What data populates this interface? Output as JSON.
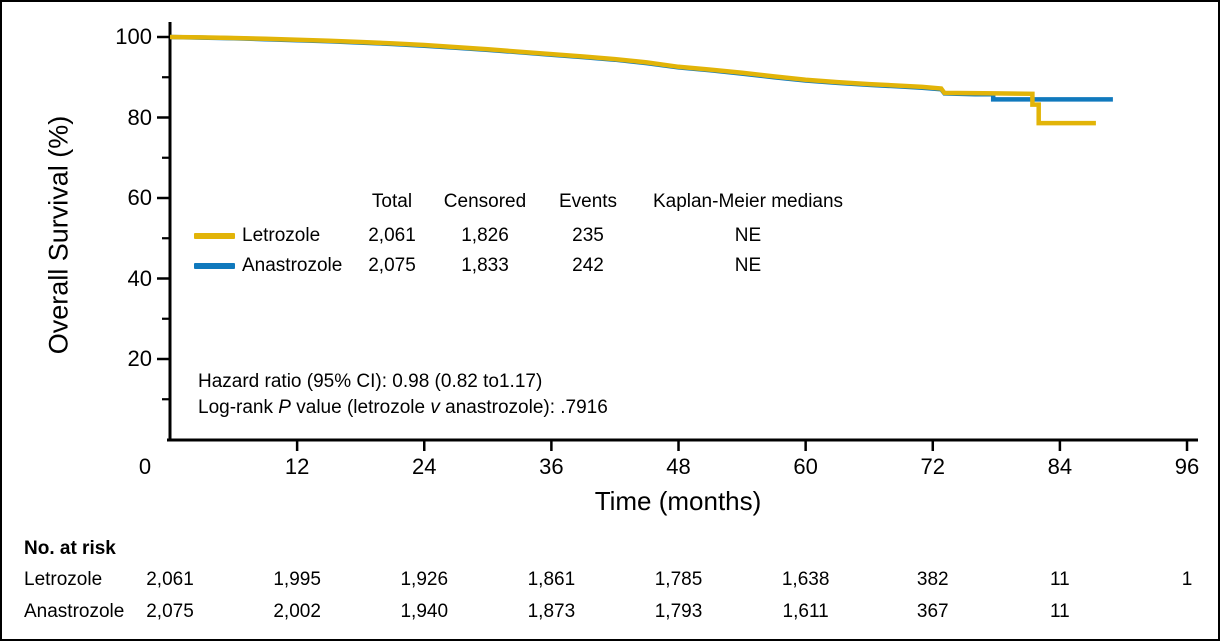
{
  "figure": {
    "background": "#ffffff",
    "border_color": "#000000",
    "text_color": "#000000"
  },
  "chart_data": {
    "type": "line",
    "subtype": "kaplan-meier-survival",
    "title": "",
    "xlabel": "Time (months)",
    "ylabel": "Overall Survival (%)",
    "xlim": [
      0,
      96
    ],
    "ylim": [
      0,
      103
    ],
    "grid": false,
    "x_ticks": [
      0,
      12,
      24,
      36,
      48,
      60,
      72,
      84,
      96
    ],
    "x_tick_labels": [
      "0",
      "12",
      "24",
      "36",
      "48",
      "60",
      "72",
      "84",
      "96"
    ],
    "y_ticks_major": [
      100,
      80,
      60,
      40,
      20
    ],
    "y_tick_labels": [
      "100",
      "80",
      "60",
      "40",
      "20"
    ],
    "y_ticks_minor": [
      90,
      70,
      50,
      30,
      10
    ],
    "legend_position": "inside-center-left",
    "series": [
      {
        "name": "Anastrozole",
        "color": "#1079BD",
        "points": [
          [
            0,
            100
          ],
          [
            3,
            99.85
          ],
          [
            6,
            99.7
          ],
          [
            9,
            99.45
          ],
          [
            12,
            99.2
          ],
          [
            15,
            98.95
          ],
          [
            18,
            98.6
          ],
          [
            21,
            98.25
          ],
          [
            24,
            97.85
          ],
          [
            27,
            97.35
          ],
          [
            30,
            96.8
          ],
          [
            33,
            96.2
          ],
          [
            36,
            95.6
          ],
          [
            39,
            95.0
          ],
          [
            42,
            94.35
          ],
          [
            45,
            93.5
          ],
          [
            48,
            92.45
          ],
          [
            51,
            91.75
          ],
          [
            54,
            90.9
          ],
          [
            57,
            90.0
          ],
          [
            60,
            89.2
          ],
          [
            63,
            88.6
          ],
          [
            66,
            88.1
          ],
          [
            69,
            87.7
          ],
          [
            71,
            87.4
          ],
          [
            72.8,
            87.0
          ],
          [
            73.1,
            86.0
          ],
          [
            76,
            85.8
          ],
          [
            77.7,
            85.8
          ],
          [
            77.7,
            84.5
          ],
          [
            89,
            84.5
          ]
        ]
      },
      {
        "name": "Letrozole",
        "color": "#E2B408",
        "points": [
          [
            0,
            100
          ],
          [
            3,
            99.9
          ],
          [
            6,
            99.75
          ],
          [
            9,
            99.55
          ],
          [
            12,
            99.3
          ],
          [
            15,
            99.05
          ],
          [
            18,
            98.75
          ],
          [
            21,
            98.4
          ],
          [
            24,
            98.0
          ],
          [
            27,
            97.5
          ],
          [
            30,
            96.95
          ],
          [
            33,
            96.35
          ],
          [
            36,
            95.75
          ],
          [
            39,
            95.15
          ],
          [
            42,
            94.5
          ],
          [
            45,
            93.7
          ],
          [
            48,
            92.6
          ],
          [
            51,
            91.9
          ],
          [
            54,
            91.1
          ],
          [
            57,
            90.2
          ],
          [
            60,
            89.4
          ],
          [
            63,
            88.8
          ],
          [
            66,
            88.3
          ],
          [
            69,
            87.9
          ],
          [
            71,
            87.6
          ],
          [
            72.8,
            87.2
          ],
          [
            73.1,
            86.1
          ],
          [
            78,
            86.0
          ],
          [
            81.4,
            85.9
          ],
          [
            81.4,
            83.2
          ],
          [
            82.0,
            83.2
          ],
          [
            82.0,
            78.6
          ],
          [
            87.4,
            78.6
          ]
        ]
      }
    ]
  },
  "legend_table": {
    "headers": [
      "Total",
      "Censored",
      "Events",
      "Kaplan-Meier medians"
    ],
    "rows": [
      {
        "name": "Letrozole",
        "color": "#E2B408",
        "values": [
          "2,061",
          "1,826",
          "235",
          "NE"
        ]
      },
      {
        "name": "Anastrozole",
        "color": "#1079BD",
        "values": [
          "2,075",
          "1,833",
          "242",
          "NE"
        ]
      }
    ]
  },
  "annotations": {
    "hazard_ratio_line": "Hazard ratio (95% CI): 0.98 (0.82 to1.17)",
    "logrank_line_segments": [
      {
        "text": "Log-rank ",
        "italic": false
      },
      {
        "text": "P",
        "italic": true
      },
      {
        "text": " value (letrozole ",
        "italic": false
      },
      {
        "text": "v",
        "italic": true
      },
      {
        "text": " anastrozole): .7916",
        "italic": false
      }
    ]
  },
  "at_risk": {
    "title": "No. at risk",
    "time_points": [
      0,
      12,
      24,
      36,
      48,
      60,
      72,
      84,
      96
    ],
    "rows": [
      {
        "name": "Letrozole",
        "values": [
          "2,061",
          "1,995",
          "1,926",
          "1,861",
          "1,785",
          "1,638",
          "382",
          "11",
          "1"
        ]
      },
      {
        "name": "Anastrozole",
        "values": [
          "2,075",
          "2,002",
          "1,940",
          "1,873",
          "1,793",
          "1,611",
          "367",
          "11",
          ""
        ]
      }
    ]
  }
}
